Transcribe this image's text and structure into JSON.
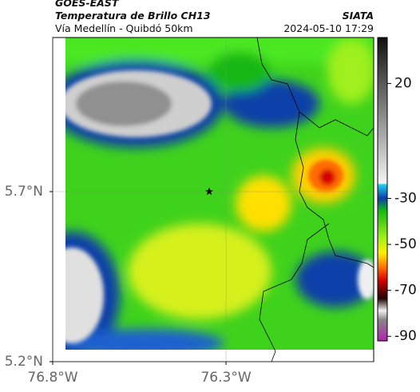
{
  "header": {
    "satellite": "GOES-EAST",
    "product": "Temperatura de Brillo CH13",
    "region": "Vía Medellín - Quibdó 50km",
    "source": "SIATA",
    "timestamp": "2024-05-10 17:29"
  },
  "map": {
    "xlim": [
      -76.8,
      -75.874
    ],
    "ylim": [
      5.2,
      6.153
    ],
    "xticks": [
      {
        "value": -76.8,
        "label": "76.8°W"
      },
      {
        "value": -76.3,
        "label": "76.3°W"
      }
    ],
    "yticks": [
      {
        "value": 5.2,
        "label": "5.2°N"
      },
      {
        "value": 5.7,
        "label": "5.7°N"
      }
    ],
    "grid": true
  },
  "colorbar": {
    "lim": [
      40,
      -92
    ],
    "ticks": [
      20,
      -30,
      -50,
      -70,
      -90
    ]
  }
}
